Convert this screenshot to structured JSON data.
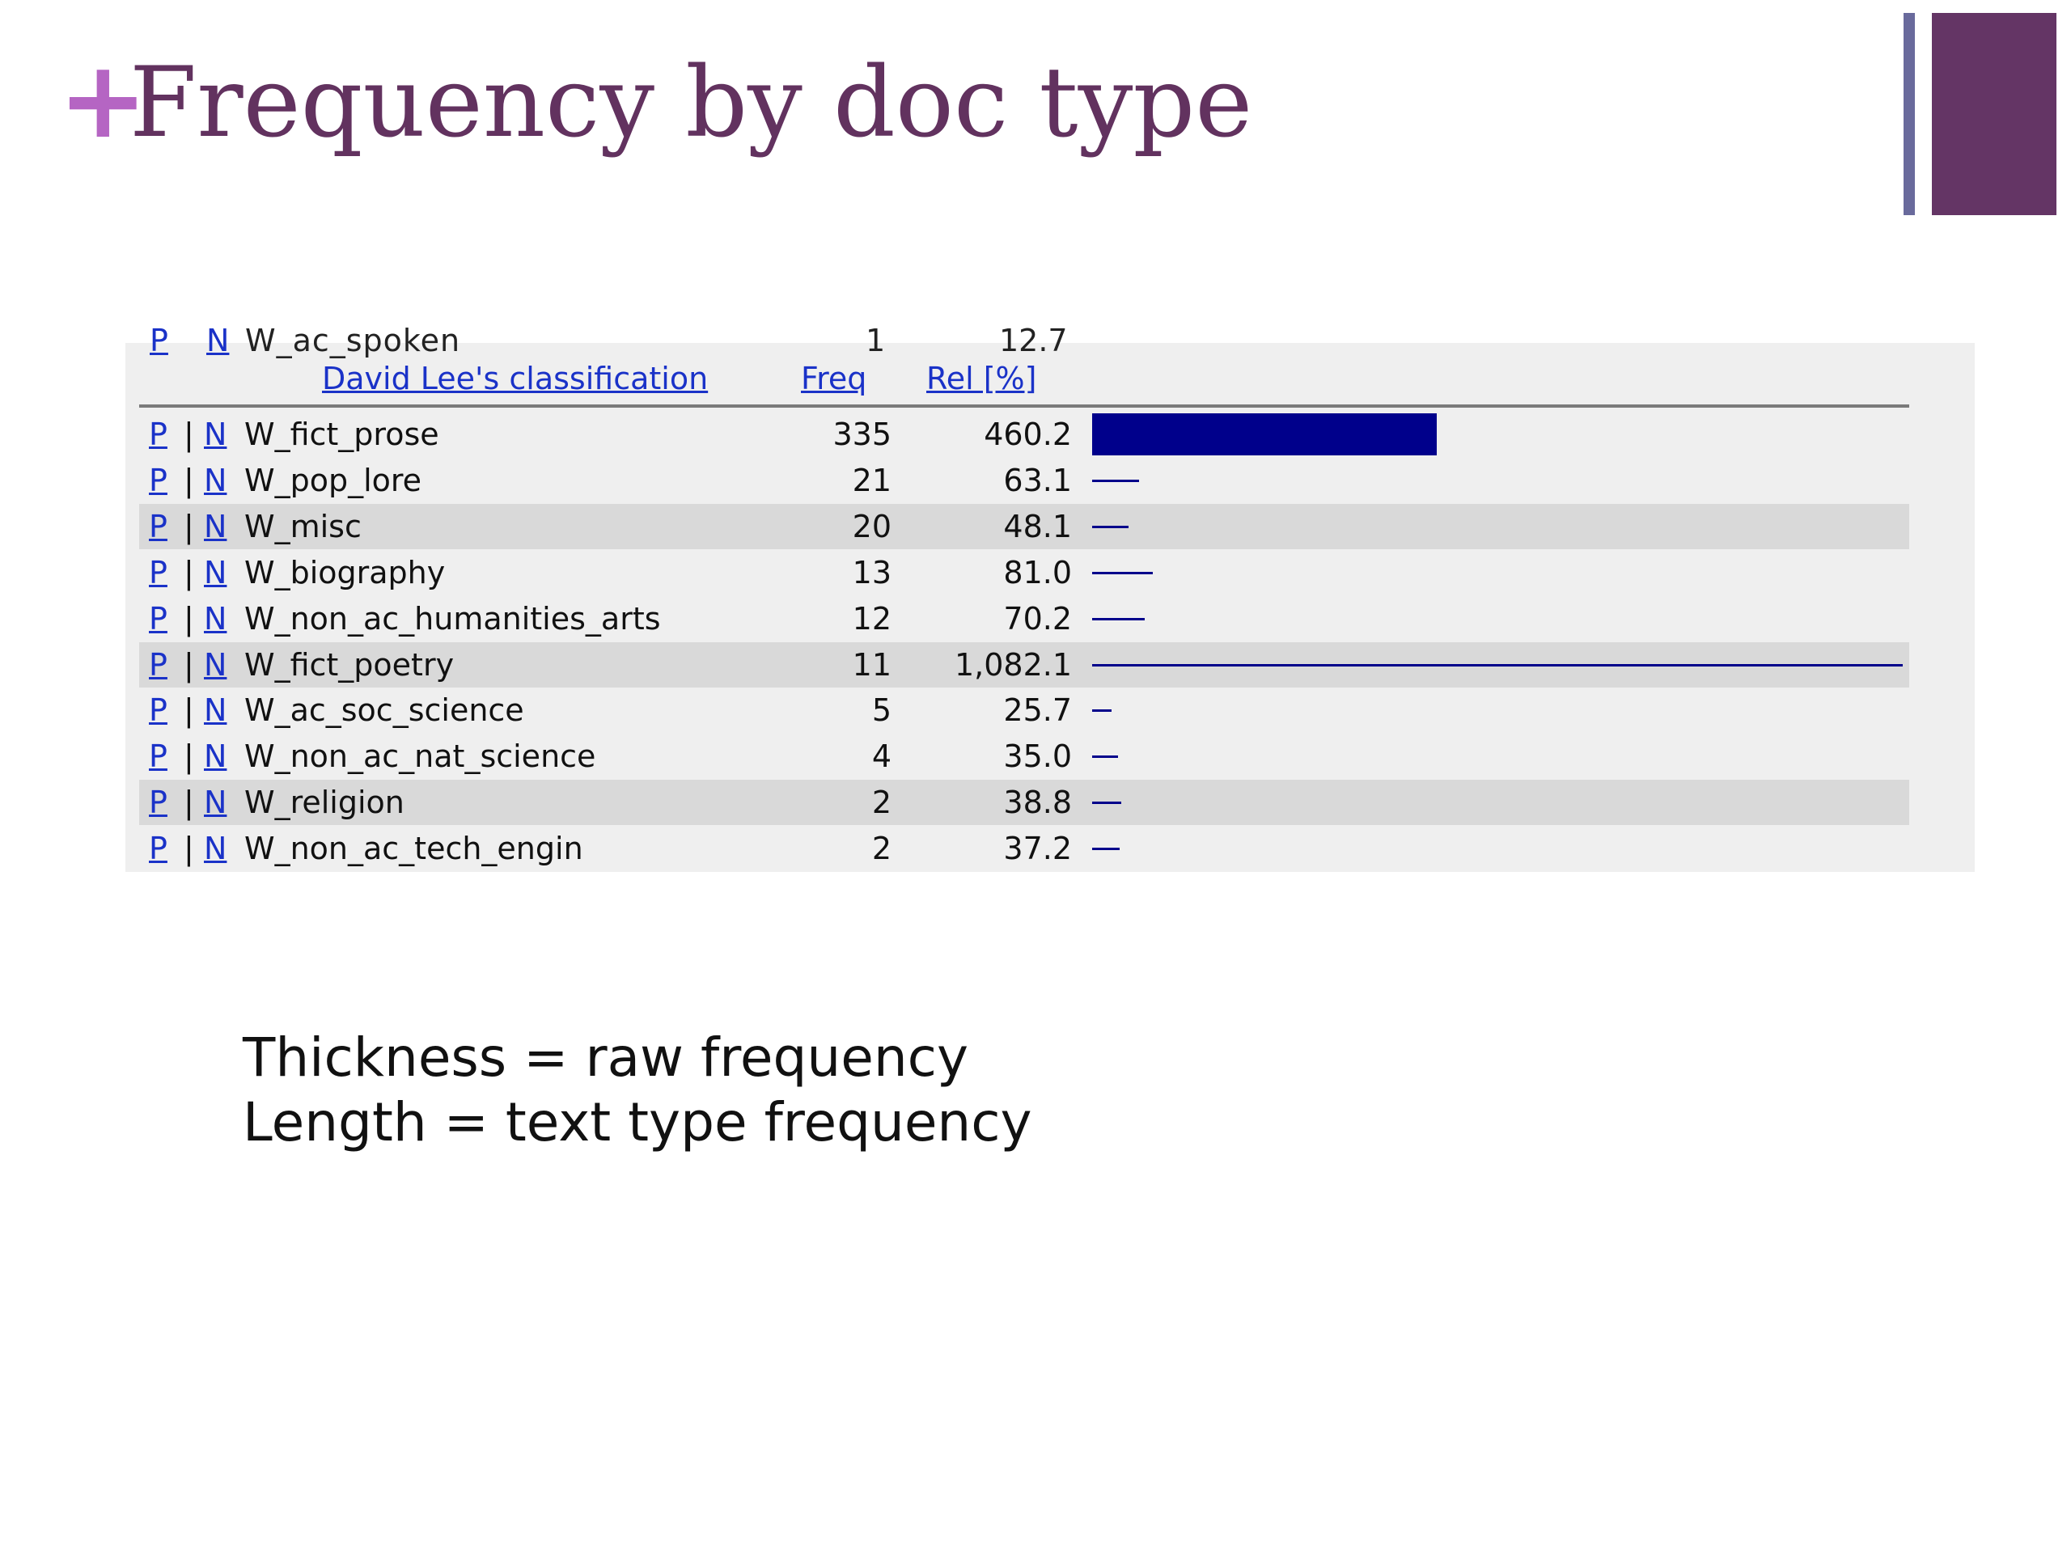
{
  "slide": {
    "plus_glyph": "+",
    "title": "Frequency by doc type",
    "accent_color": "#b565c3",
    "title_color": "#62325f",
    "decoration_colors": [
      "#696a9c",
      "#643565"
    ]
  },
  "table": {
    "cut_off_row": {
      "p": "P",
      "sep": "|",
      "n": "N",
      "label": "W_ac_spoken",
      "freq": "1",
      "rel": "12.7"
    },
    "headers": {
      "label": "David Lee's classification",
      "freq": "Freq",
      "rel": "Rel [%]"
    },
    "link_p": "P",
    "separator": "|",
    "link_n": "N",
    "bar_color": "#00008b",
    "max_rel": 1082.1,
    "max_freq": 335,
    "rows": [
      {
        "label": "W_fict_prose",
        "freq": "335",
        "rel": "460.2",
        "rel_value": 460.2,
        "freq_value": 335,
        "shaded": false
      },
      {
        "label": "W_pop_lore",
        "freq": "21",
        "rel": "63.1",
        "rel_value": 63.1,
        "freq_value": 21,
        "shaded": false
      },
      {
        "label": "W_misc",
        "freq": "20",
        "rel": "48.1",
        "rel_value": 48.1,
        "freq_value": 20,
        "shaded": true
      },
      {
        "label": "W_biography",
        "freq": "13",
        "rel": "81.0",
        "rel_value": 81.0,
        "freq_value": 13,
        "shaded": false
      },
      {
        "label": "W_non_ac_humanities_arts",
        "freq": "12",
        "rel": "70.2",
        "rel_value": 70.2,
        "freq_value": 12,
        "shaded": false
      },
      {
        "label": "W_fict_poetry",
        "freq": "11",
        "rel": "1,082.1",
        "rel_value": 1082.1,
        "freq_value": 11,
        "shaded": true
      },
      {
        "label": "W_ac_soc_science",
        "freq": "5",
        "rel": "25.7",
        "rel_value": 25.7,
        "freq_value": 5,
        "shaded": false
      },
      {
        "label": "W_non_ac_nat_science",
        "freq": "4",
        "rel": "35.0",
        "rel_value": 35.0,
        "freq_value": 4,
        "shaded": false
      },
      {
        "label": "W_religion",
        "freq": "2",
        "rel": "38.8",
        "rel_value": 38.8,
        "freq_value": 2,
        "shaded": true
      },
      {
        "label": "W_non_ac_tech_engin",
        "freq": "2",
        "rel": "37.2",
        "rel_value": 37.2,
        "freq_value": 2,
        "shaded": false
      }
    ]
  },
  "caption": {
    "line1": "Thickness = raw frequency",
    "line2": "Length = text type frequency"
  }
}
